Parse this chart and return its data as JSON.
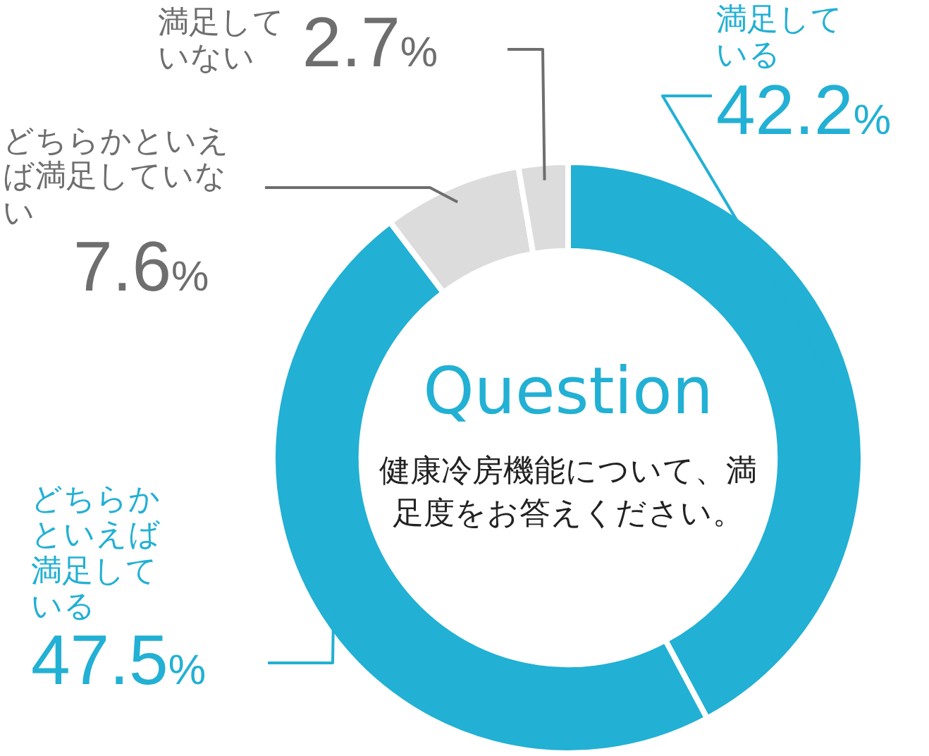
{
  "chart_data": {
    "type": "donut",
    "title": "Question",
    "subtitle": "健康冷房機能について、満足度をお答えください。",
    "categories": [
      "満足している",
      "どちらかといえば満足している",
      "どちらかといえば満足していない",
      "満足していない"
    ],
    "values": [
      42.2,
      47.5,
      7.6,
      2.7
    ],
    "colors": [
      "#22b0d4",
      "#22b0d4",
      "#dcdcdc",
      "#dcdcdc"
    ],
    "value_labels": [
      "42.2%",
      "47.5%",
      "7.6%",
      "2.7%"
    ],
    "legend": false
  }
}
